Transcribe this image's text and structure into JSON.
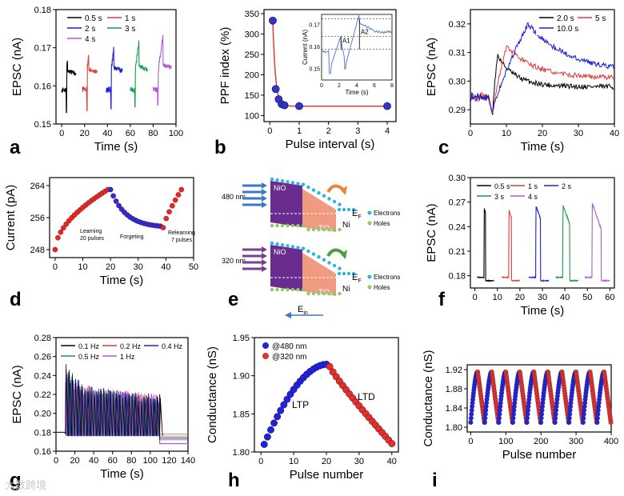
{
  "watermark": "大数跨境",
  "chart_data": [
    {
      "id": "a",
      "type": "line",
      "panel_label": "a",
      "xlabel": "Time (s)",
      "ylabel": "EPSC (nA)",
      "xlim": [
        -5,
        100
      ],
      "ylim": [
        0.15,
        0.18
      ],
      "xticks": [
        0,
        20,
        40,
        60,
        80,
        100
      ],
      "yticks": [
        0.15,
        0.16,
        0.17,
        0.18
      ],
      "legend": "top-left",
      "series": [
        {
          "name": "0.5 s",
          "color": "#000000",
          "t0": 4,
          "width": 0.5
        },
        {
          "name": "1 s",
          "color": "#e03c3c",
          "t0": 22,
          "width": 1
        },
        {
          "name": "2 s",
          "color": "#1f1fd6",
          "t0": 43,
          "width": 2
        },
        {
          "name": "3 s",
          "color": "#1a9a4a",
          "t0": 64,
          "width": 3
        },
        {
          "name": "4 s",
          "color": "#b05ad8",
          "t0": 84,
          "width": 4
        }
      ]
    },
    {
      "id": "b",
      "type": "line",
      "panel_label": "b",
      "xlabel": "Pulse interval (s)",
      "ylabel": "PPF index (%)",
      "xlim": [
        -0.2,
        4.3
      ],
      "ylim": [
        85,
        360
      ],
      "xticks": [
        0,
        1,
        2,
        3,
        4
      ],
      "yticks": [
        100,
        150,
        200,
        250,
        300,
        350
      ],
      "x": [
        0.1,
        0.2,
        0.3,
        0.4,
        0.5,
        1,
        4
      ],
      "values": [
        333,
        165,
        140,
        128,
        125,
        123,
        123
      ],
      "inset": {
        "xlabel": "Time (s)",
        "ylabel": "Current (nA)",
        "xticks": [
          0,
          2,
          4,
          6,
          8
        ],
        "yticks": [
          0.15,
          0.16,
          0.17
        ],
        "labels": [
          "A1",
          "A2"
        ]
      }
    },
    {
      "id": "c",
      "type": "line",
      "panel_label": "c",
      "xlabel": "Time (s)",
      "ylabel": "EPSC (nA)",
      "xlim": [
        0,
        40
      ],
      "ylim": [
        0.285,
        0.325
      ],
      "xticks": [
        0,
        10,
        20,
        30,
        40
      ],
      "yticks": [
        0.29,
        0.3,
        0.31,
        0.32
      ],
      "legend": "top-right",
      "series": [
        {
          "name": "2.0 s",
          "color": "#000000",
          "peak": 0.309,
          "end": 0.298,
          "tp": 7.5
        },
        {
          "name": "5 s",
          "color": "#e03c3c",
          "peak": 0.312,
          "end": 0.301,
          "tp": 10
        },
        {
          "name": "10.0 s",
          "color": "#1f1fd6",
          "peak": 0.32,
          "end": 0.303,
          "tp": 16
        }
      ]
    },
    {
      "id": "d",
      "type": "scatter",
      "panel_label": "d",
      "xlabel": "Time (s)",
      "ylabel": "Current (pA)",
      "xlim": [
        -2,
        50
      ],
      "ylim": [
        246,
        266
      ],
      "xticks": [
        0,
        10,
        20,
        30,
        40,
        50
      ],
      "yticks": [
        248,
        256,
        264
      ],
      "learning_end": 263,
      "forget_end": 253.5,
      "relearn_end": 263,
      "annotations": [
        "Learning",
        "20 pulses",
        "Forgeting",
        "Relearning",
        "7 pulses"
      ]
    },
    {
      "id": "e",
      "type": "diagram",
      "panel_label": "e",
      "rows": [
        {
          "wavelength": "480 nm",
          "arrow_color": "#3b78c4",
          "curl_color": "#e8893a"
        },
        {
          "wavelength": "320 nm",
          "arrow_color": "#7a3f8c",
          "curl_color": "#4aa041"
        }
      ],
      "layers": [
        "NiO",
        "TiO",
        "Ni"
      ],
      "fermi": "E",
      "fermi_sub": "F",
      "legend": [
        "Electrons",
        "Holes"
      ],
      "field": "E",
      "field_sub": "in",
      "oxide_sub": "2"
    },
    {
      "id": "f",
      "type": "line",
      "panel_label": "f",
      "xlabel": "Time (s)",
      "ylabel": "EPSC (nA)",
      "xlim": [
        -2,
        62
      ],
      "ylim": [
        0.165,
        0.3
      ],
      "xticks": [
        0,
        10,
        20,
        30,
        40,
        50,
        60
      ],
      "yticks": [
        0.18,
        0.21,
        0.24,
        0.27,
        0.3
      ],
      "legend": "top",
      "series": [
        {
          "name": "0.5 s",
          "color": "#000000",
          "t0": 4,
          "width": 0.5,
          "peak": 0.263
        },
        {
          "name": "1 s",
          "color": "#e03c3c",
          "t0": 15,
          "width": 1,
          "peak": 0.261
        },
        {
          "name": "2 s",
          "color": "#1f1fd6",
          "t0": 27,
          "width": 2,
          "peak": 0.267
        },
        {
          "name": "3 s",
          "color": "#1a9a4a",
          "t0": 39,
          "width": 3,
          "peak": 0.268
        },
        {
          "name": "4 s",
          "color": "#b05ad8",
          "t0": 52,
          "width": 4,
          "peak": 0.27
        }
      ]
    },
    {
      "id": "g",
      "type": "line",
      "panel_label": "g",
      "xlabel": "Time (s)",
      "ylabel": "EPSC (nA)",
      "xlim": [
        0,
        140
      ],
      "ylim": [
        0.16,
        0.28
      ],
      "xticks": [
        0,
        20,
        40,
        60,
        80,
        100,
        120,
        140
      ],
      "yticks": [
        0.16,
        0.18,
        0.2,
        0.22,
        0.24,
        0.26,
        0.28
      ],
      "legend": "top-left",
      "series": [
        {
          "name": "0.1 Hz",
          "color": "#000000",
          "peak": 0.257,
          "end": 0.174
        },
        {
          "name": "0.2 Hz",
          "color": "#e03c3c",
          "peak": 0.252,
          "end": 0.176
        },
        {
          "name": "0.4 Hz",
          "color": "#1f1fd6",
          "peak": 0.248,
          "end": 0.172
        },
        {
          "name": "0.5 Hz",
          "color": "#1a9a4a",
          "peak": 0.243,
          "end": 0.178
        },
        {
          "name": "1 Hz",
          "color": "#b05ad8",
          "peak": 0.238,
          "end": 0.168
        }
      ],
      "stim_start": 10,
      "stim_end": 110
    },
    {
      "id": "h",
      "type": "scatter",
      "panel_label": "h",
      "xlabel": "Pulse number",
      "ylabel": "Conductance (nS)",
      "xlim": [
        -2,
        42
      ],
      "ylim": [
        1.8,
        1.95
      ],
      "xticks": [
        0,
        10,
        20,
        30,
        40
      ],
      "yticks": [
        1.8,
        1.85,
        1.9,
        1.95
      ],
      "legend": "top-left",
      "series": [
        {
          "name": "@480 nm",
          "color": "#2222dd",
          "from": 1.81,
          "to": 1.915,
          "x_start": 1,
          "x_end": 20
        },
        {
          "name": "@320 nm",
          "color": "#e03030",
          "from": 1.912,
          "to": 1.811,
          "x_start": 21,
          "x_end": 40
        }
      ],
      "annotations": [
        "LTP",
        "LTD"
      ]
    },
    {
      "id": "i",
      "type": "scatter",
      "panel_label": "i",
      "xlabel": "Pulse number",
      "ylabel": "Conductance (nS)",
      "xlim": [
        -10,
        400
      ],
      "ylim": [
        1.79,
        1.93
      ],
      "xticks": [
        0,
        100,
        200,
        300,
        400
      ],
      "yticks": [
        1.8,
        1.84,
        1.88,
        1.92
      ],
      "cycles": 10,
      "pulses_per_cycle": 40,
      "low": 1.81,
      "high": 1.915
    }
  ]
}
